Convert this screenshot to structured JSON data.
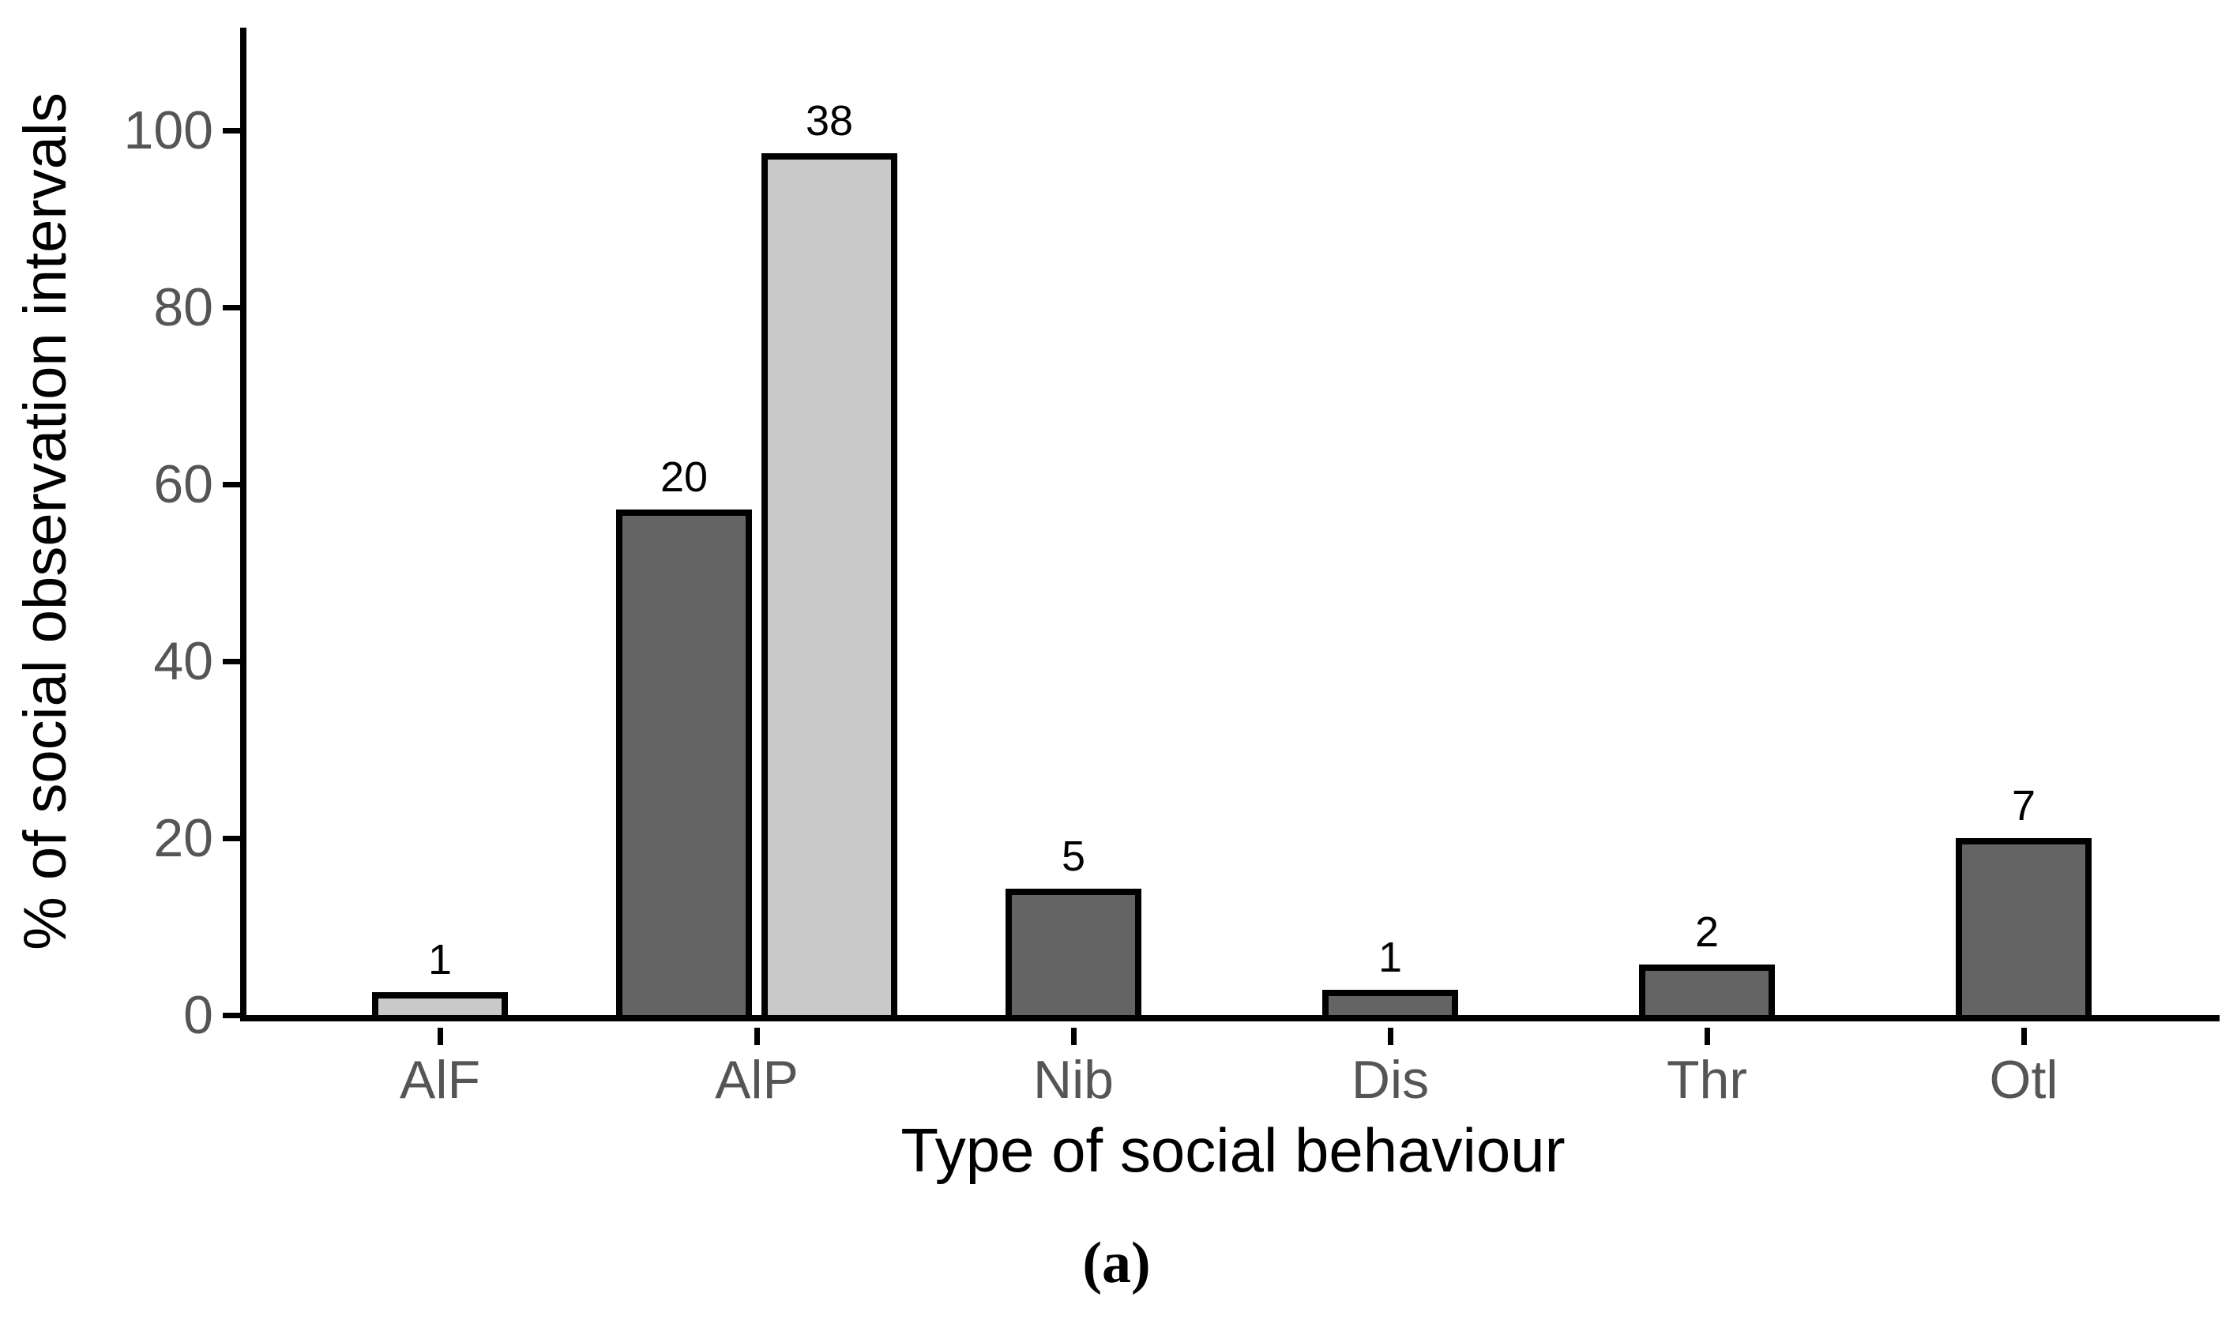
{
  "figure": {
    "caption": "(a)"
  },
  "chart_data": {
    "type": "bar",
    "title": "",
    "xlabel": "Type of social behaviour",
    "ylabel": "% of social observation intervals",
    "ylim": [
      0,
      111
    ],
    "yticks": [
      0,
      20,
      40,
      60,
      80,
      100
    ],
    "grid": false,
    "legend": false,
    "categories": [
      "AlF",
      "AlP",
      "Nib",
      "Dis",
      "Thr",
      "Otl"
    ],
    "bars": [
      {
        "category": "AlF",
        "series": "light",
        "percent": 2.6,
        "count_label": "1"
      },
      {
        "category": "AlP",
        "series": "dark",
        "percent": 57.1,
        "count_label": "20"
      },
      {
        "category": "AlP",
        "series": "light",
        "percent": 97.4,
        "count_label": "38"
      },
      {
        "category": "Nib",
        "series": "dark",
        "percent": 14.3,
        "count_label": "5"
      },
      {
        "category": "Dis",
        "series": "dark",
        "percent": 2.9,
        "count_label": "1"
      },
      {
        "category": "Thr",
        "series": "dark",
        "percent": 5.7,
        "count_label": "2"
      },
      {
        "category": "Otl",
        "series": "dark",
        "percent": 20.0,
        "count_label": "7"
      }
    ],
    "colors": {
      "dark_bar": "#646464",
      "light_bar": "#c9c9c9",
      "bar_border": "#000000",
      "axis": "#000000",
      "tick_label": "#555555"
    }
  }
}
